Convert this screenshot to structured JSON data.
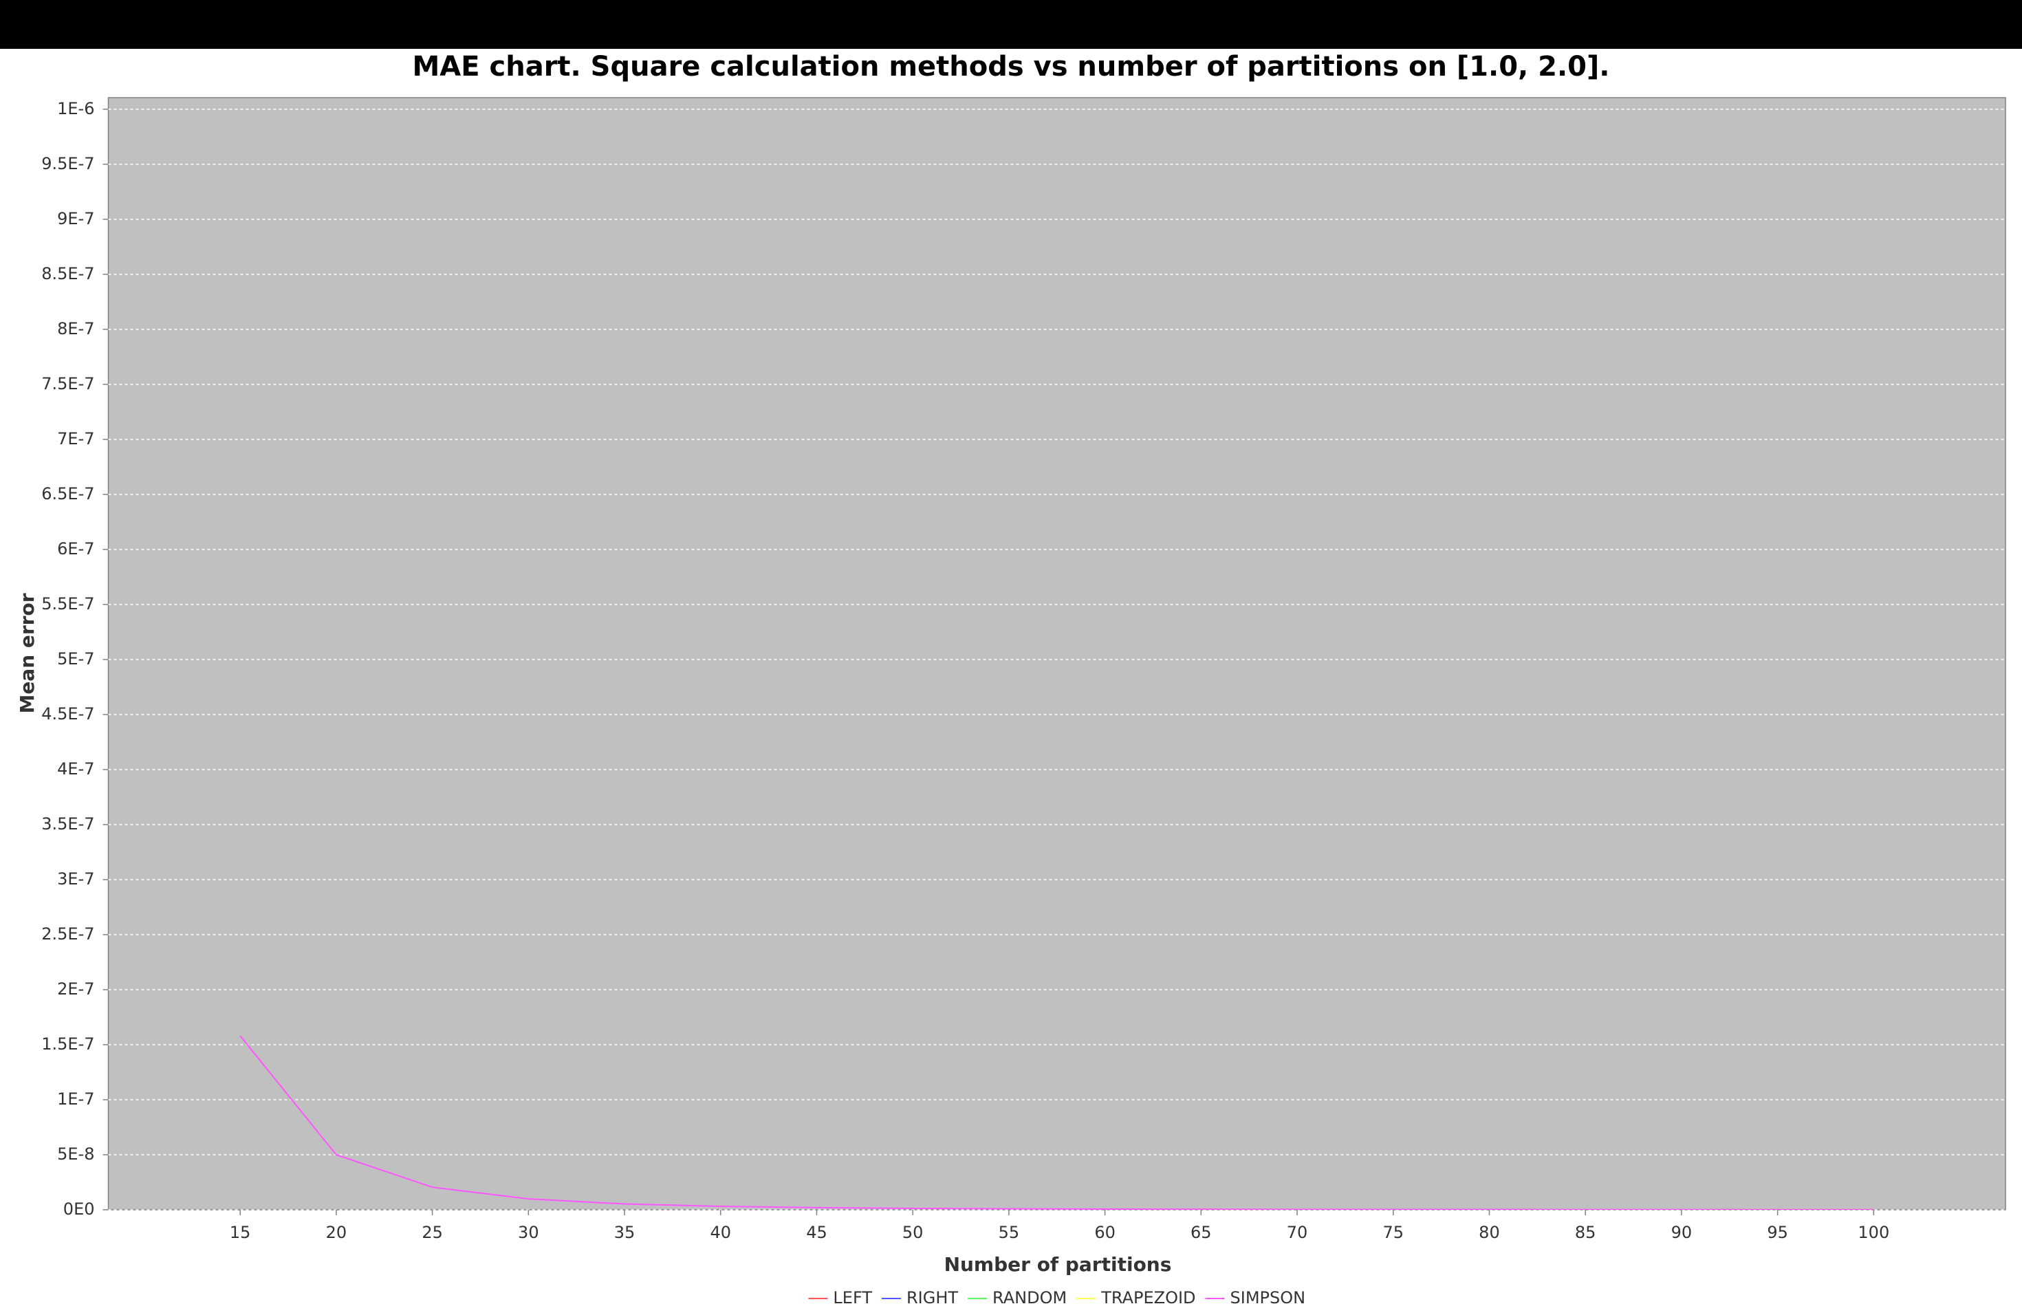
{
  "chart_data": {
    "type": "line",
    "title": "MAE chart. Square calculation methods vs number of partitions on [1.0, 2.0].",
    "x_label": "Number of partitions",
    "y_label": "Mean error",
    "categories": [
      15,
      20,
      25,
      30,
      35,
      40,
      45,
      50,
      55,
      60,
      65,
      70,
      75,
      80,
      85,
      90,
      95,
      100
    ],
    "series": [
      {
        "name": "LEFT",
        "color": "#ff5555"
      },
      {
        "name": "RIGHT",
        "color": "#5555ff"
      },
      {
        "name": "RANDOM",
        "color": "#55ff55"
      },
      {
        "name": "TRAPEZOID",
        "color": "#ffff55"
      },
      {
        "name": "SIMPSON",
        "color": "#ff55ff",
        "values": [
          1.58e-07,
          5e-08,
          2.05e-08,
          9.9e-09,
          5.3e-09,
          3.1e-09,
          1.95e-09,
          1.28e-09,
          8.7e-10,
          6.2e-10,
          4.5e-10,
          3.3e-10,
          2.5e-10,
          2e-10,
          1.6e-10,
          1.2e-10,
          1e-10,
          8e-11
        ]
      }
    ],
    "ylim": [
      0,
      1.0105e-06
    ],
    "yticks": [
      {
        "value": 0,
        "label": "0E0"
      },
      {
        "value": 5e-08,
        "label": "5E-8"
      },
      {
        "value": 1e-07,
        "label": "1E-7"
      },
      {
        "value": 1.5e-07,
        "label": "1.5E-7"
      },
      {
        "value": 2e-07,
        "label": "2E-7"
      },
      {
        "value": 2.5e-07,
        "label": "2.5E-7"
      },
      {
        "value": 3e-07,
        "label": "3E-7"
      },
      {
        "value": 3.5e-07,
        "label": "3.5E-7"
      },
      {
        "value": 4e-07,
        "label": "4E-7"
      },
      {
        "value": 4.5e-07,
        "label": "4.5E-7"
      },
      {
        "value": 5e-07,
        "label": "5E-7"
      },
      {
        "value": 5.5e-07,
        "label": "5.5E-7"
      },
      {
        "value": 6e-07,
        "label": "6E-7"
      },
      {
        "value": 6.5e-07,
        "label": "6.5E-7"
      },
      {
        "value": 7e-07,
        "label": "7E-7"
      },
      {
        "value": 7.5e-07,
        "label": "7.5E-7"
      },
      {
        "value": 8e-07,
        "label": "8E-7"
      },
      {
        "value": 8.5e-07,
        "label": "8.5E-7"
      },
      {
        "value": 9e-07,
        "label": "9E-7"
      },
      {
        "value": 9.5e-07,
        "label": "9.5E-7"
      },
      {
        "value": 1e-06,
        "label": "1E-6"
      }
    ],
    "grid": true,
    "legend": "bottom",
    "plot_background": "#c0c0c0"
  }
}
